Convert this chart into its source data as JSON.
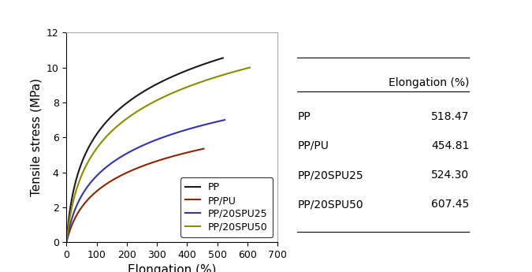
{
  "curves": {
    "PP": {
      "color": "#1a1a1a",
      "end_elongation": 518.47,
      "end_stress": 10.55,
      "log_b": 0.08
    },
    "PP/PU": {
      "color": "#8b2500",
      "end_elongation": 454.81,
      "end_stress": 5.35,
      "log_b": 0.04
    },
    "PP/20SPU25": {
      "color": "#3333aa",
      "end_elongation": 524.3,
      "end_stress": 7.0,
      "log_b": 0.05
    },
    "PP/20SPU50": {
      "color": "#8b8b00",
      "end_elongation": 607.45,
      "end_stress": 10.0,
      "log_b": 0.06
    }
  },
  "table": {
    "header": [
      "",
      "Elongation (%)"
    ],
    "rows": [
      [
        "PP",
        "518.47"
      ],
      [
        "PP/PU",
        "454.81"
      ],
      [
        "PP/20SPU25",
        "524.30"
      ],
      [
        "PP/20SPU50",
        "607.45"
      ]
    ]
  },
  "xlabel": "Elongation (%)",
  "ylabel": "Tensile stress (MPa)",
  "xlim": [
    0,
    700
  ],
  "ylim": [
    0,
    12
  ],
  "xticks": [
    0,
    100,
    200,
    300,
    400,
    500,
    600,
    700
  ],
  "yticks": [
    0,
    2,
    4,
    6,
    8,
    10,
    12
  ],
  "legend_labels": [
    "PP",
    "PP/PU",
    "PP/20SPU25",
    "PP/20SPU50"
  ],
  "legend_colors": [
    "#1a1a1a",
    "#8b2500",
    "#3333aa",
    "#8b8b00"
  ]
}
